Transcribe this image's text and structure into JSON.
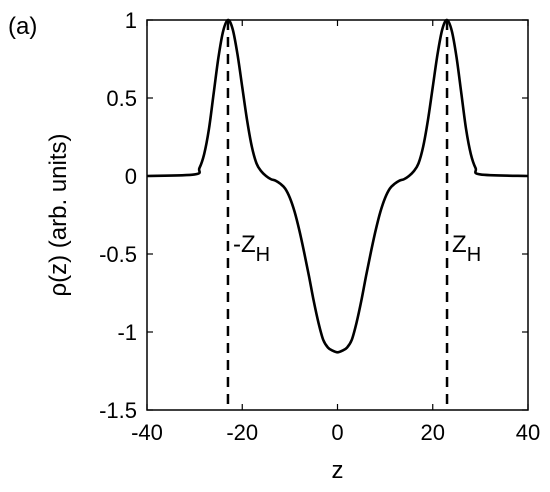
{
  "panel_label": "(a)",
  "chart_data": {
    "type": "line",
    "xlabel": "z",
    "ylabel": "ρ(z) (arb. units)",
    "xlim": [
      -40,
      40
    ],
    "ylim": [
      -1.5,
      1
    ],
    "x_ticks": [
      -40,
      -20,
      0,
      20,
      40
    ],
    "x_tick_labels": [
      "-40",
      "-20",
      "0",
      "20",
      "40"
    ],
    "y_ticks": [
      -1.5,
      -1,
      -0.5,
      0,
      0.5,
      1
    ],
    "y_tick_labels": [
      "-1.5",
      "-1",
      "-0.5",
      "0",
      "0.5",
      "1"
    ],
    "grid": false,
    "series": [
      {
        "color": "#000000",
        "style": "solid",
        "x": [
          -40,
          -30,
          -29,
          -28,
          -27,
          -26,
          -25,
          -24,
          -23,
          -22,
          -21,
          -20,
          -19,
          -18,
          -17,
          -16,
          -15,
          -14,
          -13,
          -12,
          -11,
          -10,
          -9,
          -8,
          -7,
          -6,
          -5,
          -4,
          -3,
          -2,
          -1,
          0,
          1,
          2,
          3,
          4,
          5,
          6,
          7,
          8,
          9,
          10,
          11,
          12,
          13,
          14,
          15,
          16,
          17,
          18,
          19,
          20,
          21,
          22,
          23,
          24,
          25,
          26,
          27,
          28,
          29,
          30,
          40
        ],
        "y": [
          0,
          0.01,
          0.05,
          0.14,
          0.3,
          0.53,
          0.76,
          0.93,
          1.0,
          0.94,
          0.78,
          0.57,
          0.36,
          0.19,
          0.08,
          0.03,
          0.0,
          -0.02,
          -0.03,
          -0.05,
          -0.08,
          -0.14,
          -0.23,
          -0.35,
          -0.49,
          -0.64,
          -0.8,
          -0.94,
          -1.05,
          -1.1,
          -1.12,
          -1.13,
          -1.12,
          -1.1,
          -1.05,
          -0.94,
          -0.8,
          -0.64,
          -0.49,
          -0.35,
          -0.23,
          -0.14,
          -0.08,
          -0.05,
          -0.03,
          -0.02,
          0.0,
          0.03,
          0.08,
          0.19,
          0.36,
          0.57,
          0.78,
          0.94,
          1.0,
          0.93,
          0.76,
          0.53,
          0.3,
          0.14,
          0.05,
          0.01,
          0
        ]
      }
    ],
    "vlines": [
      {
        "x": -23,
        "style": "dashed",
        "label": "-Z",
        "sub": "H"
      },
      {
        "x": 23,
        "style": "dashed",
        "label": "Z",
        "sub": "H"
      }
    ],
    "annotation_y": -0.5
  }
}
